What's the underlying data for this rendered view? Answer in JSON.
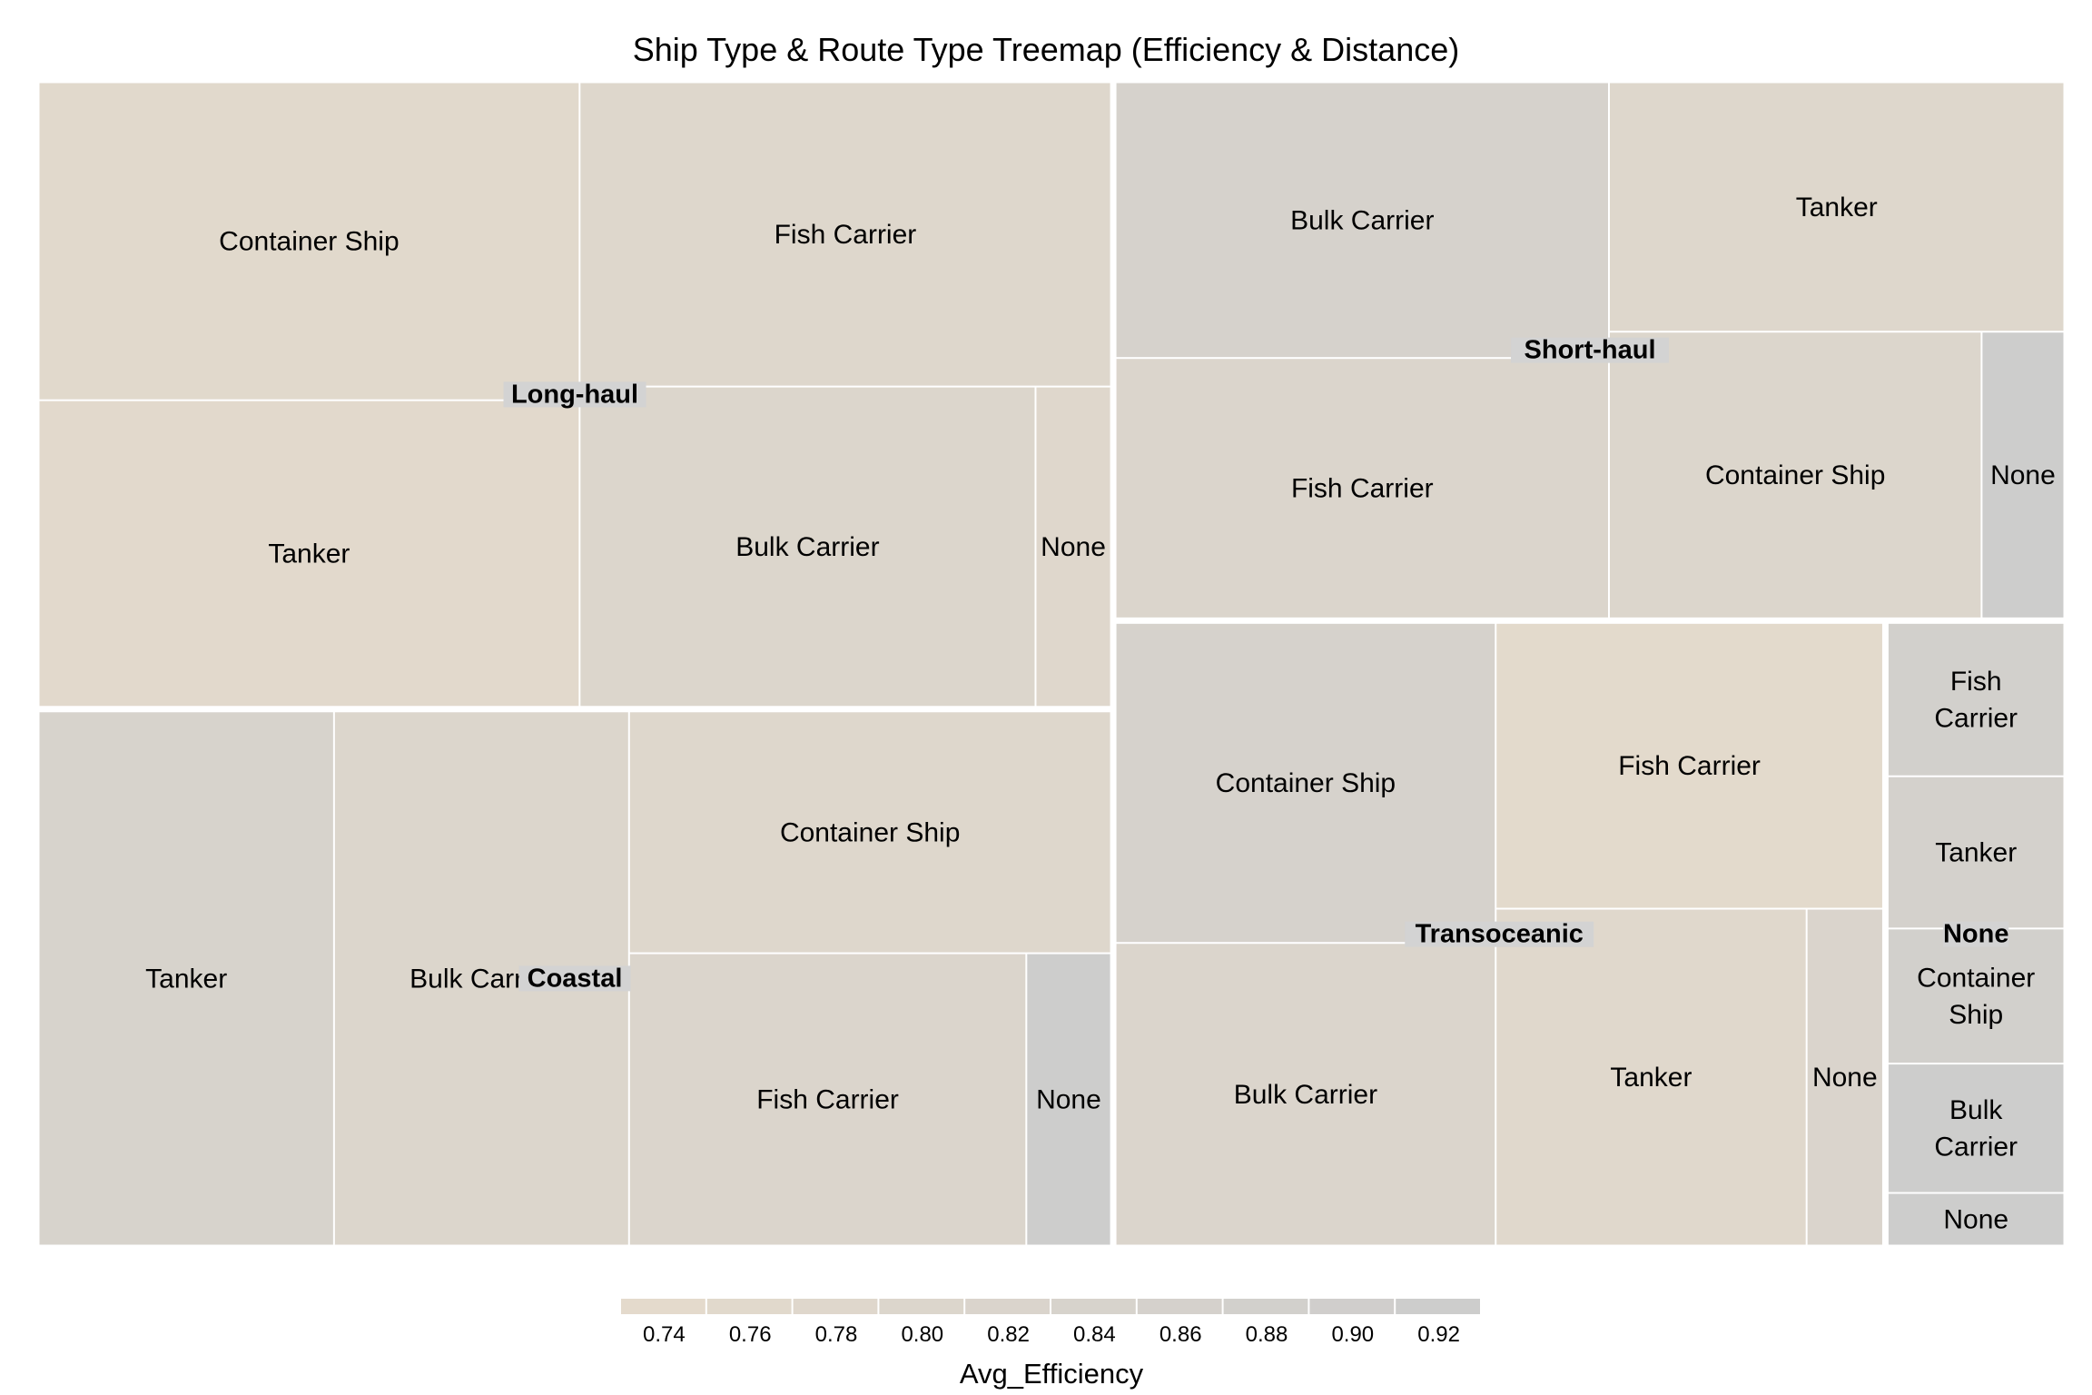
{
  "chart_data": {
    "type": "treemap",
    "title": "Ship Type & Route Type Treemap (Efficiency & Distance)",
    "size_variable": "Distance",
    "color_variable": "Avg_Efficiency",
    "groups": [
      {
        "name": "Long-haul",
        "children": [
          {
            "name": "Container Ship",
            "value": 83.3,
            "avg_efficiency": 0.76
          },
          {
            "name": "Tanker",
            "value": 80.3,
            "avg_efficiency": 0.755
          },
          {
            "name": "Fish Carrier",
            "value": 78.3,
            "avg_efficiency": 0.79
          },
          {
            "name": "Bulk Carrier",
            "value": 70.7,
            "avg_efficiency": 0.8
          },
          {
            "name": "None",
            "value": 11.7,
            "avg_efficiency": 0.78
          }
        ]
      },
      {
        "name": "Coastal",
        "children": [
          {
            "name": "Tanker",
            "value": 76.5,
            "avg_efficiency": 0.84
          },
          {
            "name": "Bulk Carrier",
            "value": 76.4,
            "avg_efficiency": 0.8
          },
          {
            "name": "Container Ship",
            "value": 56.5,
            "avg_efficiency": 0.79
          },
          {
            "name": "Fish Carrier",
            "value": 56.3,
            "avg_efficiency": 0.81
          },
          {
            "name": "None",
            "value": 12.0,
            "avg_efficiency": 0.92
          }
        ]
      },
      {
        "name": "Short-haul",
        "children": [
          {
            "name": "Bulk Carrier",
            "value": 66.0,
            "avg_efficiency": 0.85
          },
          {
            "name": "Fish Carrier",
            "value": 62.3,
            "avg_efficiency": 0.81
          },
          {
            "name": "Tanker",
            "value": 55.1,
            "avg_efficiency": 0.79
          },
          {
            "name": "Container Ship",
            "value": 51.8,
            "avg_efficiency": 0.8
          },
          {
            "name": "None",
            "value": 11.5,
            "avg_efficiency": 0.92
          }
        ]
      },
      {
        "name": "Transoceanic",
        "children": [
          {
            "name": "Container Ship",
            "value": 59.0,
            "avg_efficiency": 0.85
          },
          {
            "name": "Bulk Carrier",
            "value": 55.8,
            "avg_efficiency": 0.81
          },
          {
            "name": "Fish Carrier",
            "value": 53.7,
            "avg_efficiency": 0.75
          },
          {
            "name": "Tanker",
            "value": 50.8,
            "avg_efficiency": 0.77
          },
          {
            "name": "None",
            "value": 12.5,
            "avg_efficiency": 0.82
          }
        ]
      },
      {
        "name": "None",
        "children": [
          {
            "name": "Fish Carrier",
            "value": 13.4,
            "avg_efficiency": 0.88
          },
          {
            "name": "Tanker",
            "value": 13.3,
            "avg_efficiency": 0.87
          },
          {
            "name": "Container Ship",
            "value": 11.8,
            "avg_efficiency": 0.88
          },
          {
            "name": "Bulk Carrier",
            "value": 11.3,
            "avg_efficiency": 0.92
          },
          {
            "name": "None",
            "value": 4.6,
            "avg_efficiency": 0.92
          }
        ]
      }
    ],
    "color_scale": {
      "low_color": "#e5dbcc",
      "high_color": "#cccccc",
      "range": [
        0.73,
        0.93
      ]
    },
    "legend": {
      "title": "Avg_Efficiency",
      "position": "bottom",
      "ticks": [
        "0.74",
        "0.76",
        "0.78",
        "0.80",
        "0.82",
        "0.84",
        "0.86",
        "0.88",
        "0.90",
        "0.92"
      ]
    }
  }
}
